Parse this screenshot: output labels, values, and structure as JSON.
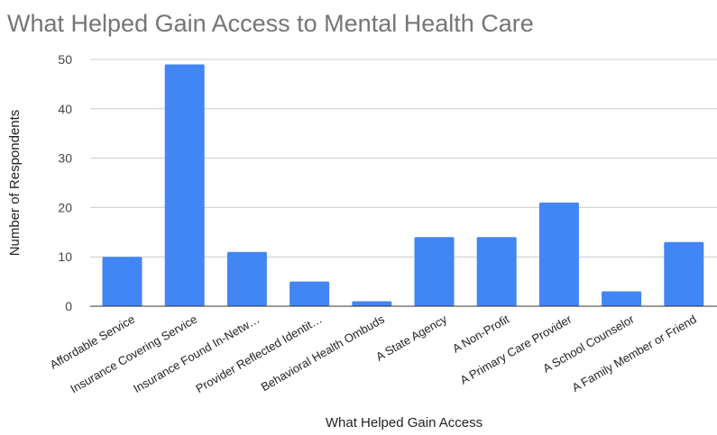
{
  "chart_data": {
    "type": "bar",
    "title": "What Helped Gain Access to Mental Health Care",
    "xlabel": "What Helped Gain Access",
    "ylabel": "Number of Respondents",
    "ylim": [
      0,
      50
    ],
    "yticks": [
      0,
      10,
      20,
      30,
      40,
      50
    ],
    "grid": true,
    "legend": "none",
    "bar_color": "#4285f4",
    "categories": [
      "Affordable Service",
      "Insurance Covering Service",
      "Insurance Found In-Netw…",
      "Provider Reflected Identit…",
      "Behavioral Health Ombuds",
      "A State Agency",
      "A Non-Profit",
      "A Primary Care Provider",
      "A School Counselor",
      "A Family Member or Friend"
    ],
    "values": [
      10,
      49,
      11,
      5,
      1,
      14,
      14,
      21,
      3,
      13
    ]
  }
}
